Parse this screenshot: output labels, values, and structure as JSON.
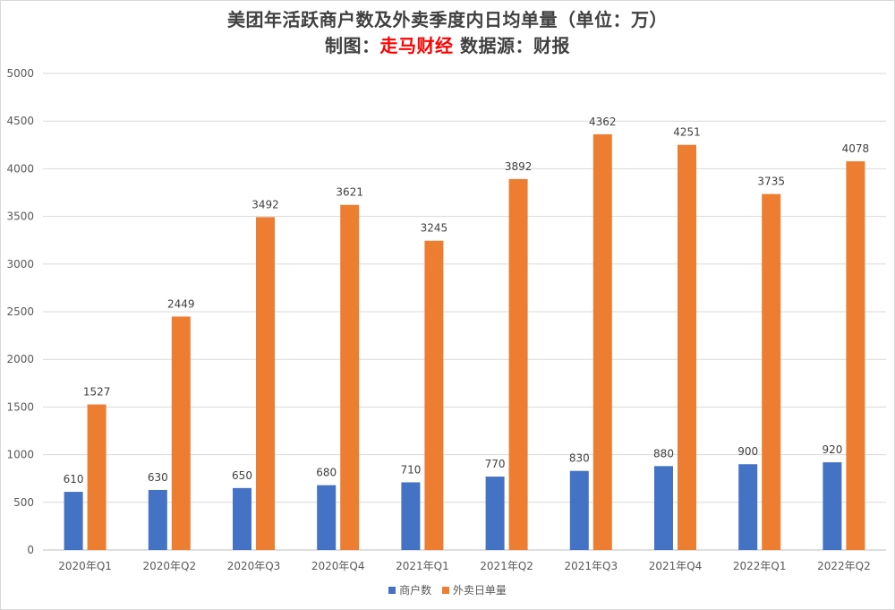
{
  "header": {
    "title": "美团年活跃商户数及外卖季度内日均单量（单位：万）",
    "sub_prefix": "制图：",
    "sub_brand": "走马财经",
    "sub_suffix": " 数据源：财报"
  },
  "colors": {
    "series_1": "#4472c4",
    "series_2": "#ed7d31",
    "brand": "#ff0000",
    "grid": "#d9d9d9"
  },
  "chart_data": {
    "type": "bar",
    "title": "美团年活跃商户数及外卖季度内日均单量（单位：万）",
    "categories": [
      "2020年Q1",
      "2020年Q2",
      "2020年Q3",
      "2020年Q4",
      "2021年Q1",
      "2021年Q2",
      "2021年Q3",
      "2021年Q4",
      "2022年Q1",
      "2022年Q2"
    ],
    "series": [
      {
        "name": "商户数",
        "values": [
          610,
          630,
          650,
          680,
          710,
          770,
          830,
          880,
          900,
          920
        ]
      },
      {
        "name": "外卖日单量",
        "values": [
          1527,
          2449,
          3492,
          3621,
          3245,
          3892,
          4362,
          4251,
          3735,
          4078
        ]
      }
    ],
    "ylim": [
      0,
      5000
    ],
    "yticks": [
      0,
      500,
      1000,
      1500,
      2000,
      2500,
      3000,
      3500,
      4000,
      4500,
      5000
    ],
    "grid": true,
    "data_labels": true,
    "legend_position": "bottom"
  }
}
